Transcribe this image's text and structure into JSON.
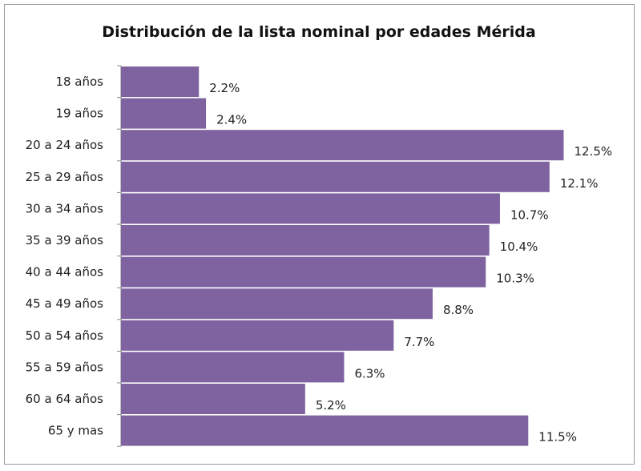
{
  "chart_data": {
    "type": "bar",
    "orientation": "horizontal",
    "title": "Distribución de la lista nominal por edades Mérida",
    "xlabel": "",
    "ylabel": "",
    "categories": [
      "18 años",
      "19 años",
      "20 a 24 años",
      "25 a 29 años",
      "30 a 34 años",
      "35 a 39 años",
      "40 a 44 años",
      "45 a 49 años",
      "50 a 54 años",
      "55 a 59 años",
      "60 a 64 años",
      "65 y mas"
    ],
    "values": [
      2.2,
      2.4,
      12.5,
      12.1,
      10.7,
      10.4,
      10.3,
      8.8,
      7.7,
      6.3,
      5.2,
      11.5
    ],
    "data_labels": [
      "2.2%",
      "2.4%",
      "12.5%",
      "12.1%",
      "10.7%",
      "10.4%",
      "10.3%",
      "8.8%",
      "7.7%",
      "6.3%",
      "5.2%",
      "11.5%"
    ],
    "bar_color": "#7e63a0",
    "grid": false,
    "legend": "none"
  }
}
